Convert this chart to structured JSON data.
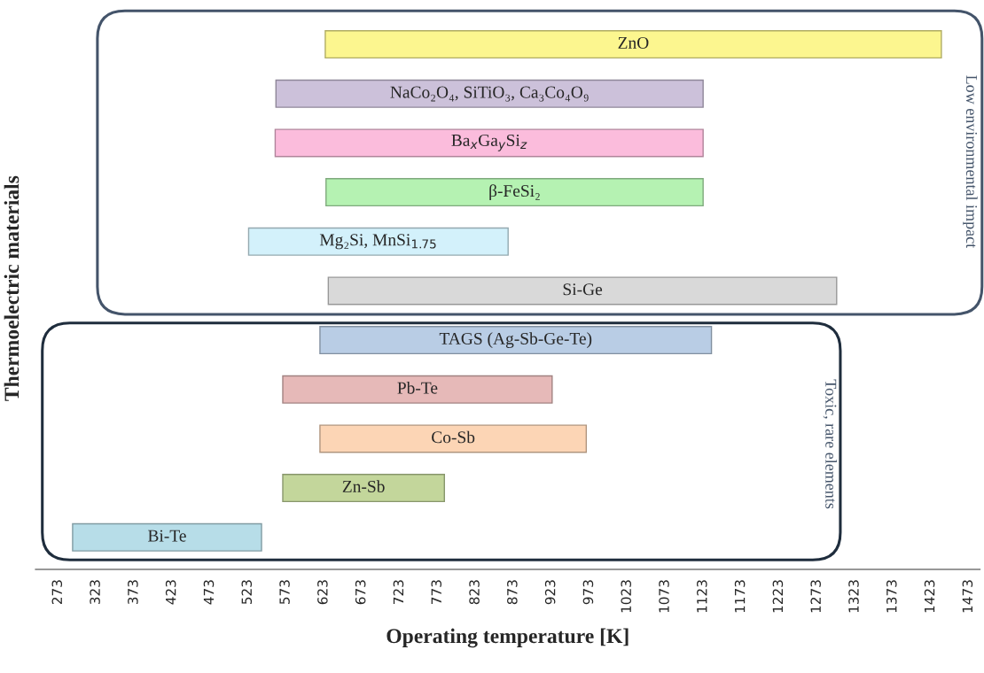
{
  "chart_data": {
    "type": "bar",
    "orientation": "horizontal",
    "xlabel": "Operating temperature [K]",
    "ylabel": "Thermoelectric materials",
    "categories": [
      "ZnO",
      "NaCo₂O₄, SiTiO₃, Ca₃Co₄O₉",
      "Ba$_{x}$Ga$_{y}$Si$_{z}$",
      "β-FeSi₂",
      "Mg₂Si, MnSi$_{1.75}$",
      "Si-Ge",
      "TAGS (Ag-Sb-Ge-Te)",
      "Pb-Te",
      "Co-Sb",
      "Zn-Sb",
      "Bi-Te"
    ],
    "base": [
      625,
      560,
      559,
      626,
      524,
      629,
      618,
      569,
      618,
      569,
      292
    ],
    "values": [
      812,
      563,
      564,
      497,
      342,
      670,
      516,
      355,
      351,
      213,
      249
    ],
    "colors": [
      "#fcf68f",
      "#ccc1da",
      "#fbbcdc",
      "#b5f2b2",
      "#d3f1fb",
      "#d9d9d9",
      "#b9cde5",
      "#e6b9b8",
      "#fcd5b5",
      "#c3d69b",
      "#b7dde8"
    ],
    "xlim": [
      243,
      1488
    ],
    "xticks": [
      273,
      323,
      373,
      423,
      473,
      523,
      573,
      623,
      673,
      723,
      773,
      823,
      873,
      923,
      973,
      1023,
      1073,
      1123,
      1173,
      1223,
      1273,
      1323,
      1373,
      1423,
      1473
    ],
    "tick_labels": "x",
    "annotations": [
      "Low environmental impact",
      "Toxic, rare elements"
    ]
  }
}
